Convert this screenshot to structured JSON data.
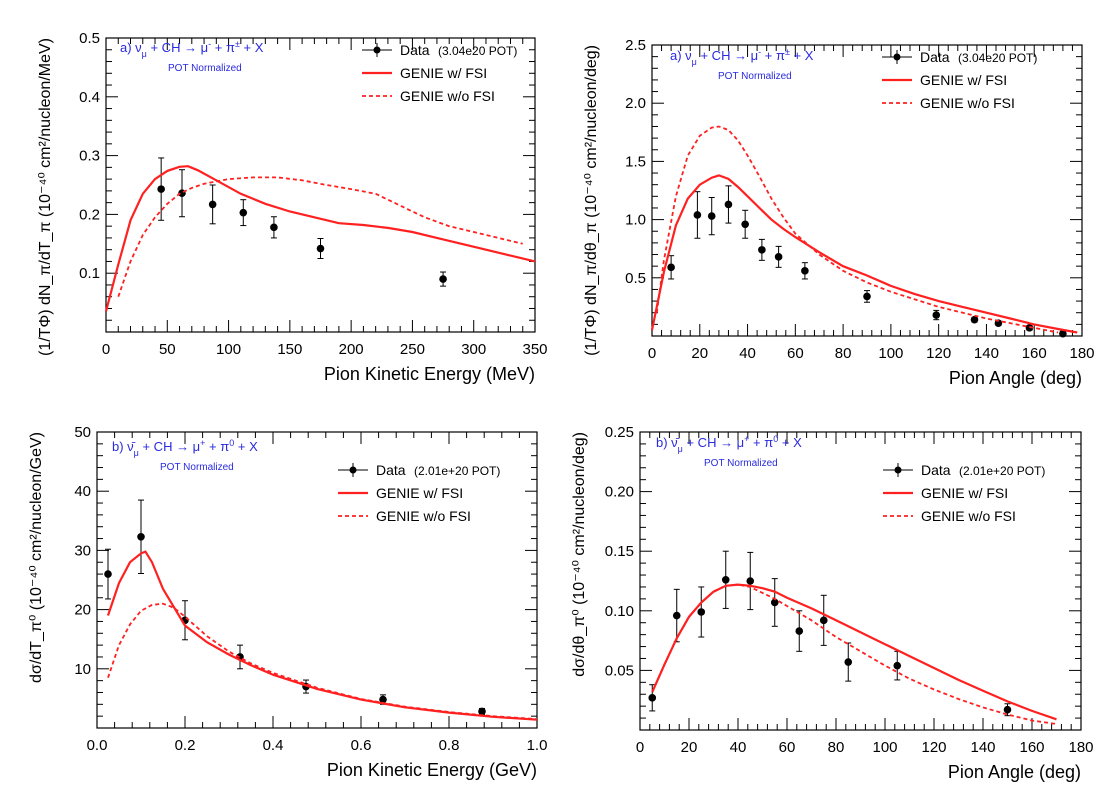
{
  "chart_data": [
    {
      "type": "line",
      "panel": "top-left",
      "title": "a)  ν_μ + CH → μ⁻ + π^± + X",
      "subtitle": "POT Normalized",
      "xlabel": "Pion Kinetic Energy (MeV)",
      "ylabel": "(1/TΦ) dN_π/dT_π (10⁻⁴⁰ cm²/nucleon/MeV)",
      "xlim": [
        0,
        350
      ],
      "ylim": [
        0,
        0.5
      ],
      "xticks": [
        0,
        50,
        100,
        150,
        200,
        250,
        300,
        350
      ],
      "xtick_labels": [
        "0",
        "50",
        "100",
        "150",
        "200",
        "250",
        "300",
        "350"
      ],
      "yticks": [
        0.1,
        0.2,
        0.3,
        0.4,
        0.5
      ],
      "ytick_labels": [
        "0.1",
        "0.2",
        "0.3",
        "0.4",
        "0.5"
      ],
      "legend": {
        "placement": "top-right",
        "data": "Data",
        "data_note": "(3.04e20 POT)",
        "fsi": "GENIE w/ FSI",
        "nofsi": "GENIE w/o FSI"
      },
      "series": [
        {
          "name": "Data",
          "kind": "points",
          "color": "#000000",
          "x": [
            45,
            62,
            87,
            112,
            137,
            175,
            275
          ],
          "y": [
            0.243,
            0.236,
            0.217,
            0.203,
            0.178,
            0.142,
            0.09
          ],
          "yerr": [
            0.053,
            0.04,
            0.033,
            0.022,
            0.018,
            0.017,
            0.012
          ]
        },
        {
          "name": "GENIE w/ FSI",
          "kind": "line",
          "dash": "solid",
          "color": "#ff2020",
          "x": [
            0,
            10,
            20,
            30,
            40,
            50,
            60,
            67,
            75,
            90,
            110,
            130,
            150,
            170,
            190,
            210,
            230,
            250,
            270,
            290,
            310,
            330,
            350
          ],
          "y": [
            0.035,
            0.115,
            0.19,
            0.235,
            0.26,
            0.274,
            0.281,
            0.282,
            0.275,
            0.258,
            0.235,
            0.218,
            0.205,
            0.195,
            0.185,
            0.182,
            0.177,
            0.17,
            0.16,
            0.15,
            0.14,
            0.13,
            0.12
          ]
        },
        {
          "name": "GENIE w/o FSI",
          "kind": "line",
          "dash": "dashed",
          "color": "#ff2020",
          "x": [
            10,
            20,
            30,
            40,
            50,
            60,
            70,
            80,
            100,
            120,
            140,
            160,
            180,
            200,
            220,
            240,
            260,
            280,
            300,
            320,
            340
          ],
          "y": [
            0.06,
            0.12,
            0.165,
            0.195,
            0.218,
            0.235,
            0.245,
            0.252,
            0.26,
            0.263,
            0.263,
            0.258,
            0.25,
            0.243,
            0.235,
            0.215,
            0.195,
            0.18,
            0.17,
            0.16,
            0.15
          ]
        }
      ]
    },
    {
      "type": "line",
      "panel": "top-right",
      "title": "a)  ν_μ + CH → μ⁻ + π^± + X",
      "subtitle": "POT Normalized",
      "xlabel": "Pion Angle (deg)",
      "ylabel": "(1/TΦ) dN_π/dθ_π (10⁻⁴⁰ cm²/nucleon/deg)",
      "xlim": [
        0,
        180
      ],
      "ylim": [
        0,
        2.5
      ],
      "xticks": [
        0,
        20,
        40,
        60,
        80,
        100,
        120,
        140,
        160,
        180
      ],
      "xtick_labels": [
        "0",
        "20",
        "40",
        "60",
        "80",
        "100",
        "120",
        "140",
        "160",
        "180"
      ],
      "yticks": [
        0.5,
        1.0,
        1.5,
        2.0,
        2.5
      ],
      "ytick_labels": [
        "0.5",
        "1.0",
        "1.5",
        "2.0",
        "2.5"
      ],
      "legend": {
        "placement": "top-right",
        "data": "Data",
        "data_note": "(3.04e20 POT)",
        "fsi": "GENIE w/ FSI",
        "nofsi": "GENIE w/o FSI"
      },
      "series": [
        {
          "name": "Data",
          "kind": "points",
          "color": "#000000",
          "x": [
            8,
            19,
            25,
            32,
            39,
            46,
            53,
            64,
            90,
            119,
            135,
            145,
            158,
            172
          ],
          "y": [
            0.59,
            1.04,
            1.03,
            1.13,
            0.96,
            0.74,
            0.68,
            0.56,
            0.34,
            0.18,
            0.14,
            0.11,
            0.07,
            0.02
          ],
          "yerr": [
            0.1,
            0.2,
            0.16,
            0.16,
            0.12,
            0.09,
            0.09,
            0.07,
            0.05,
            0.04,
            0.02,
            0.02,
            0.02,
            0.02
          ]
        },
        {
          "name": "GENIE w/ FSI",
          "kind": "line",
          "dash": "solid",
          "color": "#ff2020",
          "x": [
            0,
            5,
            10,
            15,
            20,
            25,
            28,
            32,
            36,
            40,
            45,
            50,
            55,
            60,
            70,
            80,
            90,
            100,
            110,
            120,
            130,
            140,
            150,
            160,
            170,
            178
          ],
          "y": [
            0.05,
            0.55,
            0.95,
            1.18,
            1.3,
            1.36,
            1.38,
            1.35,
            1.28,
            1.2,
            1.1,
            1.0,
            0.92,
            0.85,
            0.72,
            0.6,
            0.52,
            0.43,
            0.36,
            0.3,
            0.25,
            0.2,
            0.15,
            0.1,
            0.06,
            0.03
          ]
        },
        {
          "name": "GENIE w/o FSI",
          "kind": "line",
          "dash": "dashed",
          "color": "#ff2020",
          "x": [
            2,
            5,
            10,
            15,
            20,
            25,
            28,
            32,
            36,
            40,
            45,
            50,
            55,
            60,
            70,
            80,
            90,
            100,
            120,
            140,
            160,
            170
          ],
          "y": [
            0.2,
            0.65,
            1.2,
            1.55,
            1.72,
            1.79,
            1.8,
            1.77,
            1.68,
            1.55,
            1.37,
            1.18,
            1.02,
            0.88,
            0.7,
            0.56,
            0.46,
            0.38,
            0.25,
            0.15,
            0.07,
            0.03
          ]
        }
      ]
    },
    {
      "type": "line",
      "panel": "bottom-left",
      "title": "b)  ν̄_μ + CH → μ⁺ + π⁰ + X",
      "subtitle": "POT Normalized",
      "xlabel": "Pion Kinetic Energy (GeV)",
      "ylabel": "dσ/dT_π⁰ (10⁻⁴⁰ cm²/nucleon/GeV)",
      "xlim": [
        0,
        1.0
      ],
      "ylim": [
        0,
        50
      ],
      "xticks": [
        0,
        0.2,
        0.4,
        0.6,
        0.8,
        1.0
      ],
      "xtick_labels": [
        "0.0",
        "0.2",
        "0.4",
        "0.6",
        "0.8",
        "1.0"
      ],
      "yticks": [
        10,
        20,
        30,
        40,
        50
      ],
      "ytick_labels": [
        "10",
        "20",
        "30",
        "40",
        "50"
      ],
      "legend": {
        "placement": "top-right",
        "data": "Data",
        "data_note": "(2.01e+20 POT)",
        "fsi": "GENIE w/ FSI",
        "nofsi": "GENIE w/o FSI"
      },
      "series": [
        {
          "name": "Data",
          "kind": "points",
          "color": "#000000",
          "x": [
            0.025,
            0.1,
            0.2,
            0.325,
            0.475,
            0.65,
            0.875
          ],
          "y": [
            26,
            32.3,
            18.2,
            12,
            7,
            4.8,
            2.8
          ],
          "yerr": [
            4.2,
            6.2,
            3.3,
            2.0,
            1.1,
            0.8,
            0.5
          ]
        },
        {
          "name": "GENIE w/ FSI",
          "kind": "line",
          "dash": "solid",
          "color": "#ff2020",
          "x": [
            0.025,
            0.05,
            0.075,
            0.1,
            0.11,
            0.125,
            0.15,
            0.2,
            0.25,
            0.3,
            0.35,
            0.4,
            0.5,
            0.6,
            0.7,
            0.8,
            0.9,
            1.0
          ],
          "y": [
            19,
            24.5,
            28,
            29.5,
            29.8,
            28,
            23.5,
            17.3,
            14.5,
            12.4,
            10.6,
            9.0,
            6.6,
            4.8,
            3.5,
            2.6,
            1.9,
            1.4
          ]
        },
        {
          "name": "GENIE w/o FSI",
          "kind": "line",
          "dash": "dashed",
          "color": "#ff2020",
          "x": [
            0.025,
            0.05,
            0.075,
            0.1,
            0.125,
            0.15,
            0.175,
            0.2,
            0.25,
            0.3,
            0.35,
            0.4,
            0.5,
            0.6,
            0.7,
            0.8,
            0.9,
            1.0
          ],
          "y": [
            8.5,
            14,
            17.5,
            19.8,
            20.8,
            21,
            20.3,
            18.8,
            15.5,
            12.9,
            10.9,
            9.3,
            6.8,
            4.9,
            3.6,
            2.7,
            2.0,
            1.5
          ]
        }
      ]
    },
    {
      "type": "line",
      "panel": "bottom-right",
      "title": "b)  ν̄_μ + CH → μ⁺ + π⁰ + X",
      "subtitle": "POT Normalized",
      "xlabel": "Pion Angle (deg)",
      "ylabel": "dσ/dθ_π⁰ (10⁻⁴⁰ cm²/nucleon/deg)",
      "xlim": [
        0,
        180
      ],
      "ylim": [
        0,
        0.25
      ],
      "xticks": [
        0,
        20,
        40,
        60,
        80,
        100,
        120,
        140,
        160,
        180
      ],
      "xtick_labels": [
        "0",
        "20",
        "40",
        "60",
        "80",
        "100",
        "120",
        "140",
        "160",
        "180"
      ],
      "yticks": [
        0.05,
        0.1,
        0.15,
        0.2,
        0.25
      ],
      "ytick_labels": [
        "0.05",
        "0.10",
        "0.15",
        "0.20",
        "0.25"
      ],
      "legend": {
        "placement": "top-right",
        "data": "Data",
        "data_note": "(2.01e+20 POT)",
        "fsi": "GENIE w/ FSI",
        "nofsi": "GENIE w/o FSI"
      },
      "series": [
        {
          "name": "Data",
          "kind": "points",
          "color": "#000000",
          "x": [
            5,
            15,
            25,
            35,
            45,
            55,
            65,
            75,
            85,
            105,
            150
          ],
          "y": [
            0.027,
            0.096,
            0.099,
            0.126,
            0.125,
            0.107,
            0.083,
            0.092,
            0.057,
            0.054,
            0.017
          ],
          "yerr": [
            0.011,
            0.022,
            0.021,
            0.024,
            0.024,
            0.02,
            0.017,
            0.021,
            0.016,
            0.012,
            0.005
          ]
        },
        {
          "name": "GENIE w/ FSI",
          "kind": "line",
          "dash": "solid",
          "color": "#ff2020",
          "x": [
            5,
            10,
            15,
            20,
            25,
            30,
            35,
            40,
            45,
            50,
            55,
            60,
            70,
            80,
            90,
            100,
            110,
            120,
            130,
            140,
            150,
            160,
            170
          ],
          "y": [
            0.032,
            0.055,
            0.077,
            0.095,
            0.107,
            0.116,
            0.121,
            0.122,
            0.121,
            0.119,
            0.116,
            0.111,
            0.102,
            0.092,
            0.082,
            0.072,
            0.062,
            0.052,
            0.042,
            0.033,
            0.024,
            0.016,
            0.009
          ]
        },
        {
          "name": "GENIE w/o FSI",
          "kind": "line",
          "dash": "dashed",
          "color": "#ff2020",
          "x": [
            5,
            10,
            15,
            20,
            25,
            30,
            35,
            40,
            45,
            50,
            55,
            60,
            70,
            80,
            90,
            100,
            110,
            120,
            130,
            140,
            150,
            160,
            170
          ],
          "y": [
            0.032,
            0.055,
            0.077,
            0.095,
            0.107,
            0.116,
            0.121,
            0.122,
            0.12,
            0.115,
            0.11,
            0.104,
            0.092,
            0.078,
            0.066,
            0.054,
            0.043,
            0.034,
            0.026,
            0.019,
            0.013,
            0.008,
            0.005
          ]
        }
      ]
    }
  ]
}
